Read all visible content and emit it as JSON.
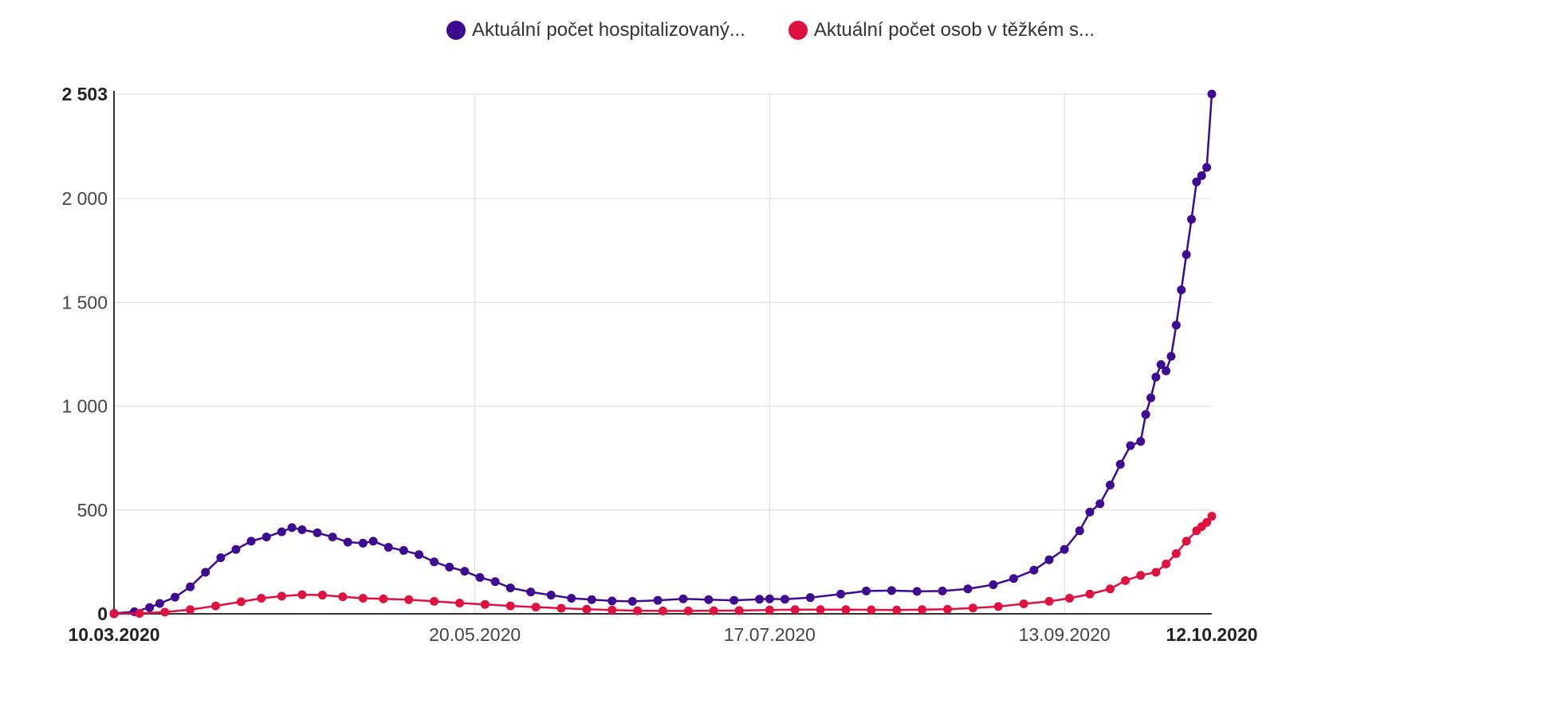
{
  "legend": {
    "items": [
      {
        "label": "Aktuální počet hospitalizovaný...",
        "color": "#3d0a91"
      },
      {
        "label": "Aktuální počet osob v těžkém s...",
        "color": "#e0103f"
      }
    ]
  },
  "chart_data": {
    "type": "line",
    "title": "",
    "xlabel": "",
    "ylabel": "",
    "ylim": [
      0,
      2503
    ],
    "xlim": [
      "10.03.2020",
      "12.10.2020"
    ],
    "grid": true,
    "legend_position": "top",
    "y_ticks": [
      {
        "value": 0,
        "label": "0",
        "bold": true
      },
      {
        "value": 500,
        "label": "500",
        "bold": false
      },
      {
        "value": 1000,
        "label": "1 000",
        "bold": false
      },
      {
        "value": 1500,
        "label": "1 500",
        "bold": false
      },
      {
        "value": 2000,
        "label": "2 000",
        "bold": false
      },
      {
        "value": 2503,
        "label": "2 503",
        "bold": true
      }
    ],
    "x_ticks": [
      {
        "date": "10.03.2020",
        "label": "10.03.2020",
        "bold": true
      },
      {
        "date": "20.05.2020",
        "label": "20.05.2020",
        "bold": false
      },
      {
        "date": "17.07.2020",
        "label": "17.07.2020",
        "bold": false
      },
      {
        "date": "13.09.2020",
        "label": "13.09.2020",
        "bold": false
      },
      {
        "date": "12.10.2020",
        "label": "12.10.2020",
        "bold": true
      }
    ],
    "series": [
      {
        "name": "Aktuální počet hospitalizovaný...",
        "color": "#3d0a91",
        "points": [
          [
            "10.03.2020",
            2
          ],
          [
            "14.03.2020",
            10
          ],
          [
            "17.03.2020",
            30
          ],
          [
            "19.03.2020",
            50
          ],
          [
            "22.03.2020",
            80
          ],
          [
            "25.03.2020",
            130
          ],
          [
            "28.03.2020",
            200
          ],
          [
            "31.03.2020",
            270
          ],
          [
            "03.04.2020",
            310
          ],
          [
            "06.04.2020",
            350
          ],
          [
            "09.04.2020",
            370
          ],
          [
            "12.04.2020",
            395
          ],
          [
            "14.04.2020",
            415
          ],
          [
            "16.04.2020",
            405
          ],
          [
            "19.04.2020",
            390
          ],
          [
            "22.04.2020",
            370
          ],
          [
            "25.04.2020",
            345
          ],
          [
            "28.04.2020",
            340
          ],
          [
            "30.04.2020",
            350
          ],
          [
            "03.05.2020",
            320
          ],
          [
            "06.05.2020",
            305
          ],
          [
            "09.05.2020",
            285
          ],
          [
            "12.05.2020",
            250
          ],
          [
            "15.05.2020",
            225
          ],
          [
            "18.05.2020",
            205
          ],
          [
            "21.05.2020",
            175
          ],
          [
            "24.05.2020",
            155
          ],
          [
            "27.05.2020",
            125
          ],
          [
            "31.05.2020",
            105
          ],
          [
            "04.06.2020",
            90
          ],
          [
            "08.06.2020",
            75
          ],
          [
            "12.06.2020",
            68
          ],
          [
            "16.06.2020",
            62
          ],
          [
            "20.06.2020",
            60
          ],
          [
            "25.06.2020",
            65
          ],
          [
            "30.06.2020",
            72
          ],
          [
            "05.07.2020",
            68
          ],
          [
            "10.07.2020",
            65
          ],
          [
            "15.07.2020",
            70
          ],
          [
            "17.07.2020",
            72
          ],
          [
            "20.07.2020",
            70
          ],
          [
            "25.07.2020",
            78
          ],
          [
            "31.07.2020",
            95
          ],
          [
            "05.08.2020",
            110
          ],
          [
            "10.08.2020",
            112
          ],
          [
            "15.08.2020",
            108
          ],
          [
            "20.08.2020",
            110
          ],
          [
            "25.08.2020",
            120
          ],
          [
            "30.08.2020",
            140
          ],
          [
            "03.09.2020",
            170
          ],
          [
            "07.09.2020",
            210
          ],
          [
            "10.09.2020",
            260
          ],
          [
            "13.09.2020",
            310
          ],
          [
            "16.09.2020",
            400
          ],
          [
            "18.09.2020",
            490
          ],
          [
            "20.09.2020",
            530
          ],
          [
            "22.09.2020",
            620
          ],
          [
            "24.09.2020",
            720
          ],
          [
            "26.09.2020",
            810
          ],
          [
            "28.09.2020",
            830
          ],
          [
            "29.09.2020",
            960
          ],
          [
            "30.09.2020",
            1040
          ],
          [
            "01.10.2020",
            1140
          ],
          [
            "02.10.2020",
            1200
          ],
          [
            "03.10.2020",
            1170
          ],
          [
            "04.10.2020",
            1240
          ],
          [
            "05.10.2020",
            1390
          ],
          [
            "06.10.2020",
            1560
          ],
          [
            "07.10.2020",
            1730
          ],
          [
            "08.10.2020",
            1900
          ],
          [
            "09.10.2020",
            2080
          ],
          [
            "10.10.2020",
            2110
          ],
          [
            "11.10.2020",
            2150
          ],
          [
            "12.10.2020",
            2503
          ]
        ]
      },
      {
        "name": "Aktuální počet osob v těžkém s...",
        "color": "#e0103f",
        "points": [
          [
            "10.03.2020",
            0
          ],
          [
            "15.03.2020",
            2
          ],
          [
            "20.03.2020",
            8
          ],
          [
            "25.03.2020",
            20
          ],
          [
            "30.03.2020",
            38
          ],
          [
            "04.04.2020",
            58
          ],
          [
            "08.04.2020",
            75
          ],
          [
            "12.04.2020",
            85
          ],
          [
            "16.04.2020",
            92
          ],
          [
            "20.04.2020",
            90
          ],
          [
            "24.04.2020",
            82
          ],
          [
            "28.04.2020",
            75
          ],
          [
            "02.05.2020",
            72
          ],
          [
            "07.05.2020",
            68
          ],
          [
            "12.05.2020",
            60
          ],
          [
            "17.05.2020",
            52
          ],
          [
            "22.05.2020",
            45
          ],
          [
            "27.05.2020",
            38
          ],
          [
            "01.06.2020",
            32
          ],
          [
            "06.06.2020",
            27
          ],
          [
            "11.06.2020",
            22
          ],
          [
            "16.06.2020",
            18
          ],
          [
            "21.06.2020",
            15
          ],
          [
            "26.06.2020",
            14
          ],
          [
            "01.07.2020",
            14
          ],
          [
            "06.07.2020",
            15
          ],
          [
            "11.07.2020",
            16
          ],
          [
            "17.07.2020",
            18
          ],
          [
            "22.07.2020",
            20
          ],
          [
            "27.07.2020",
            20
          ],
          [
            "01.08.2020",
            20
          ],
          [
            "06.08.2020",
            19
          ],
          [
            "11.08.2020",
            18
          ],
          [
            "16.08.2020",
            20
          ],
          [
            "21.08.2020",
            22
          ],
          [
            "26.08.2020",
            28
          ],
          [
            "31.08.2020",
            35
          ],
          [
            "05.09.2020",
            48
          ],
          [
            "10.09.2020",
            60
          ],
          [
            "14.09.2020",
            75
          ],
          [
            "18.09.2020",
            95
          ],
          [
            "22.09.2020",
            120
          ],
          [
            "25.09.2020",
            160
          ],
          [
            "28.09.2020",
            185
          ],
          [
            "01.10.2020",
            200
          ],
          [
            "03.10.2020",
            240
          ],
          [
            "05.10.2020",
            290
          ],
          [
            "07.10.2020",
            350
          ],
          [
            "09.10.2020",
            400
          ],
          [
            "10.10.2020",
            420
          ],
          [
            "11.10.2020",
            440
          ],
          [
            "12.10.2020",
            470
          ]
        ]
      }
    ]
  }
}
